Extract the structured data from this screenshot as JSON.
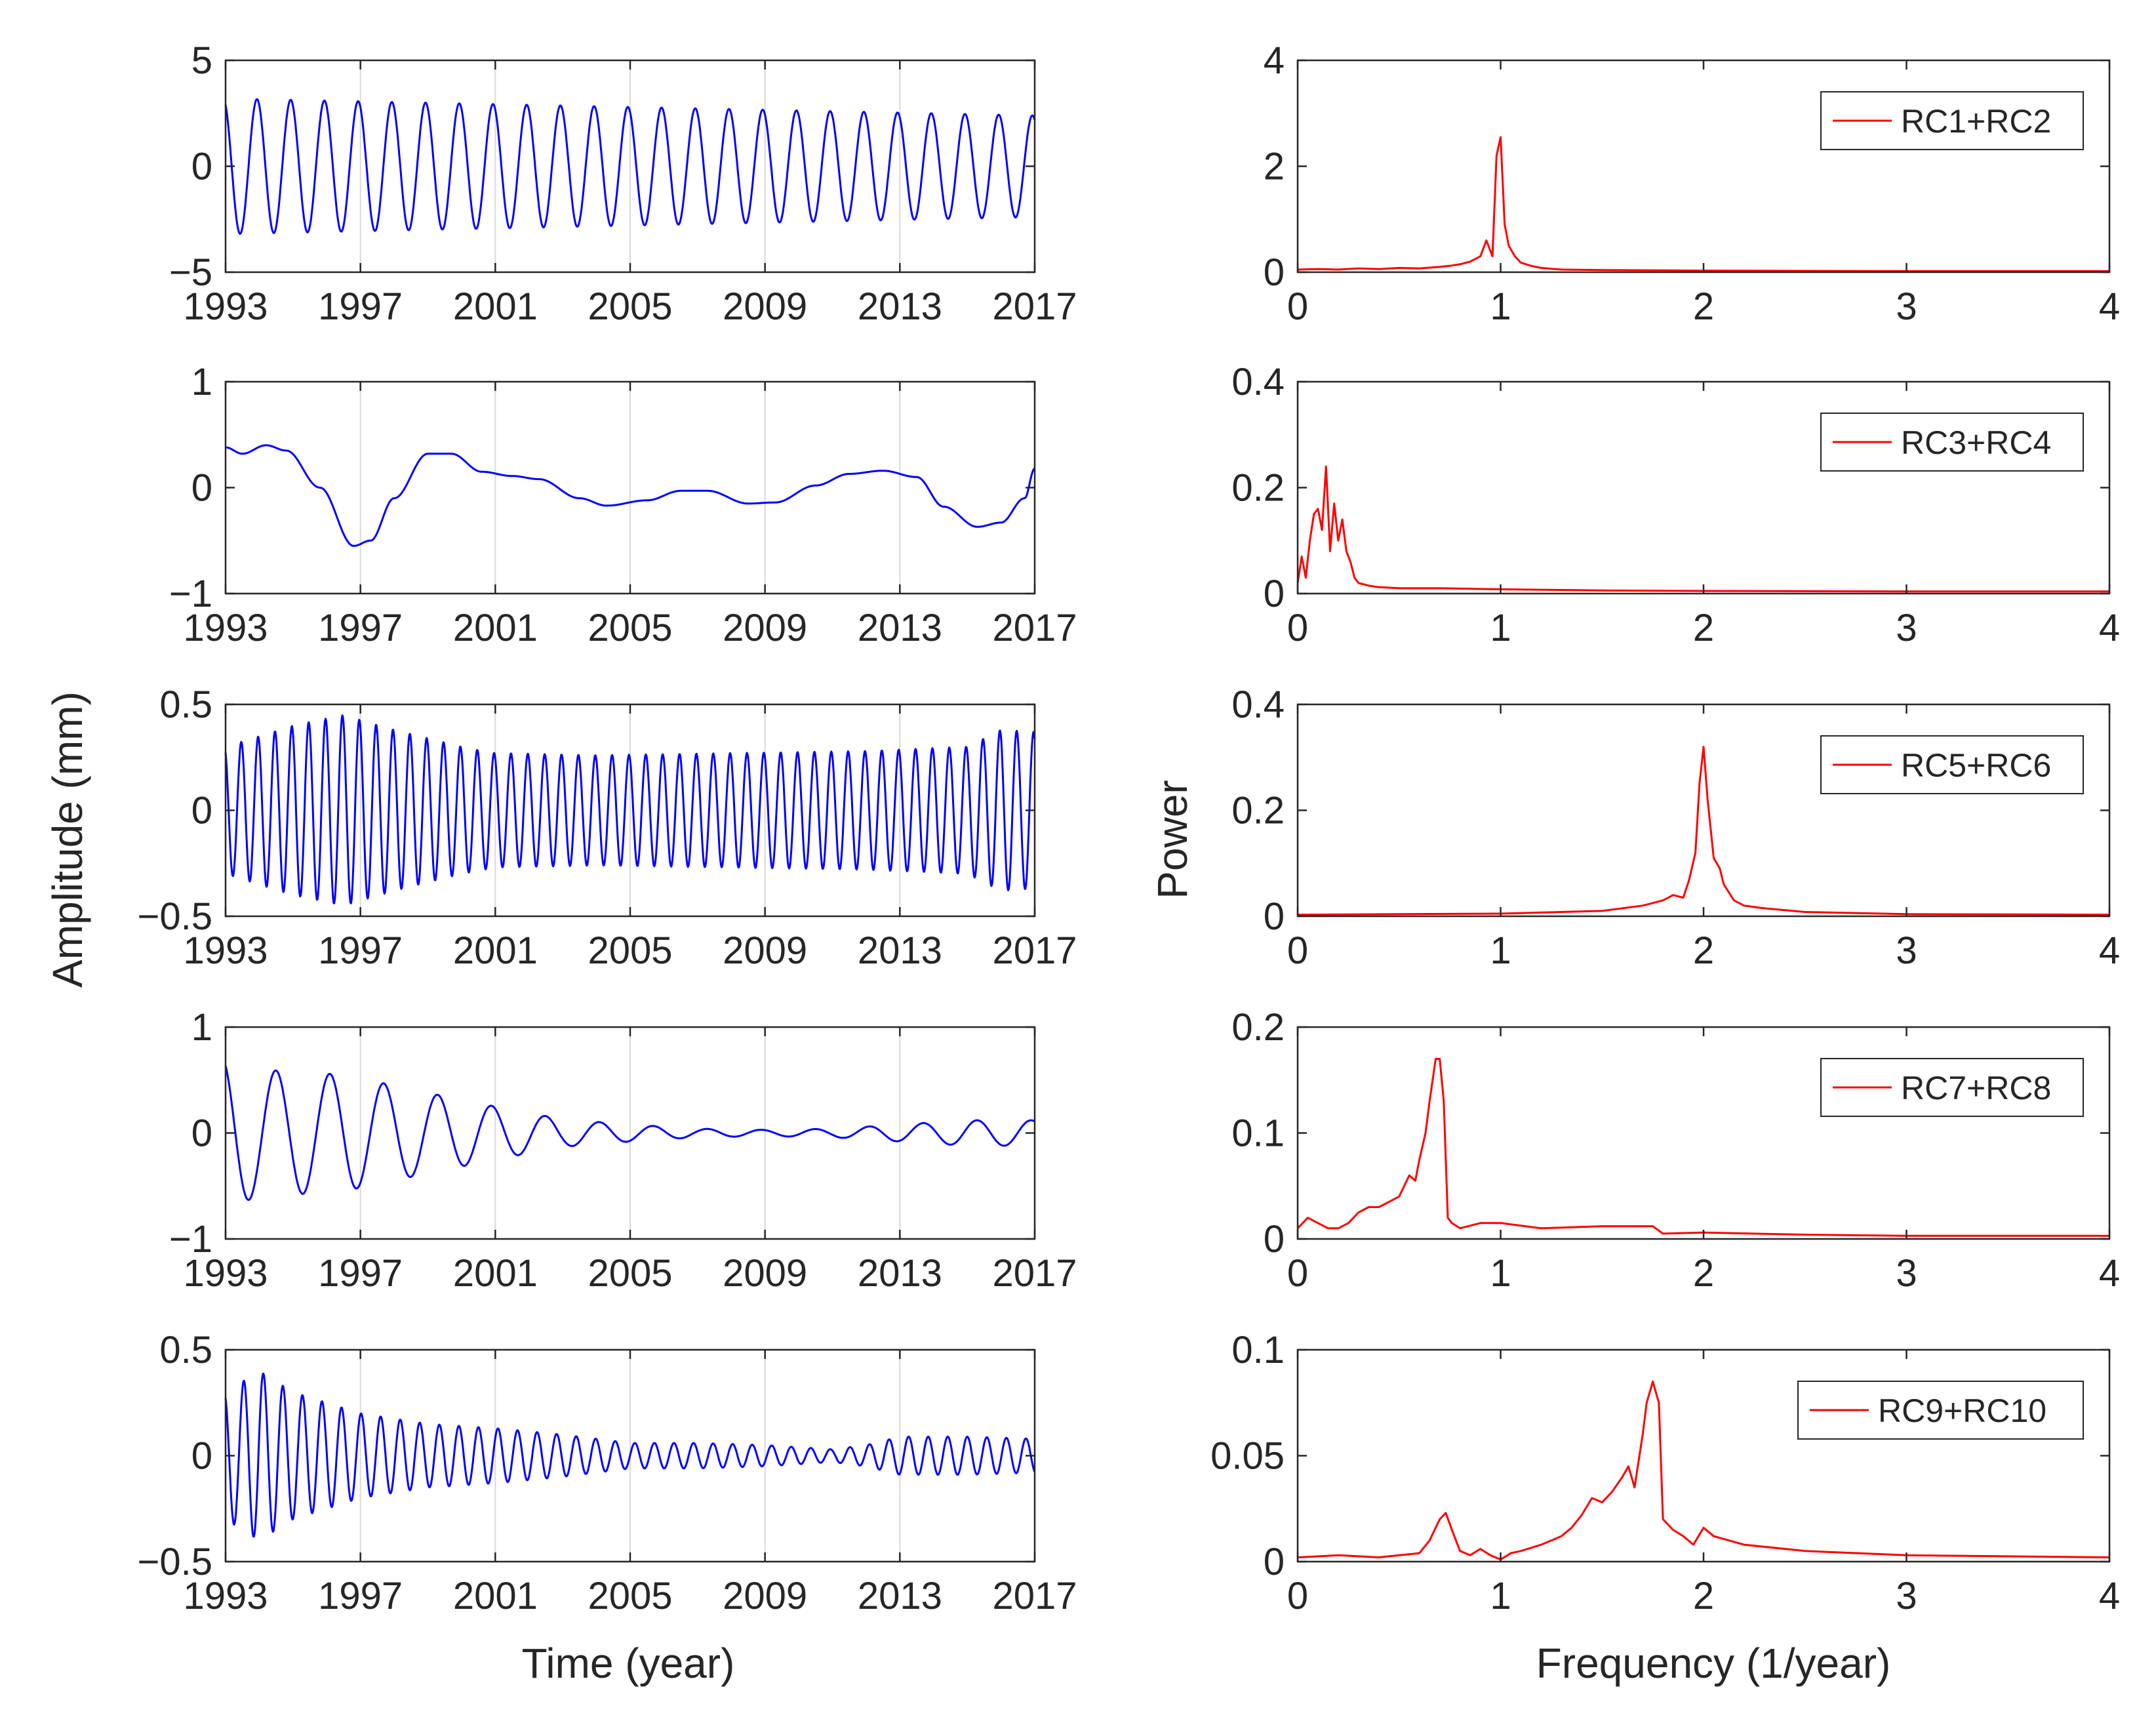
{
  "colors": {
    "time_series": "#0000ff",
    "spectrum": "#ff0000",
    "axes": "#262626",
    "grid": "#d9d9d9"
  },
  "labels": {
    "left_ylabel": "Amplitude (mm)",
    "left_xlabel": "Time (year)",
    "right_ylabel": "Power",
    "right_xlabel": "Frequency (1/year)"
  },
  "chart_data": [
    {
      "type": "line",
      "panel": "time",
      "row": 1,
      "x_ticks": [
        "1993",
        "1997",
        "2001",
        "2005",
        "2009",
        "2013",
        "2017"
      ],
      "y_ticks": [
        "5",
        "0",
        "−5"
      ],
      "xlim": [
        1993,
        2017
      ],
      "ylim": [
        -5,
        5
      ],
      "grid": "vertical",
      "signal": {
        "kind": "periodic",
        "period_years": 1.0,
        "amplitude_start": 3.2,
        "amplitude_end": 2.4
      }
    },
    {
      "type": "line",
      "panel": "time",
      "row": 2,
      "x_ticks": [
        "1993",
        "1997",
        "2001",
        "2005",
        "2009",
        "2013",
        "2017"
      ],
      "y_ticks": [
        "1",
        "0",
        "−1"
      ],
      "xlim": [
        1993,
        2017
      ],
      "ylim": [
        -1,
        1
      ],
      "grid": "vertical",
      "signal": {
        "kind": "smooth",
        "points": [
          [
            1993,
            0.38
          ],
          [
            1993.5,
            0.32
          ],
          [
            1994.2,
            0.4
          ],
          [
            1994.8,
            0.35
          ],
          [
            1995.8,
            0.0
          ],
          [
            1996.8,
            -0.55
          ],
          [
            1997.3,
            -0.5
          ],
          [
            1998,
            -0.1
          ],
          [
            1999,
            0.32
          ],
          [
            1999.7,
            0.32
          ],
          [
            2000.6,
            0.15
          ],
          [
            2001.5,
            0.11
          ],
          [
            2002.3,
            0.08
          ],
          [
            2003.5,
            -0.1
          ],
          [
            2004.3,
            -0.17
          ],
          [
            2005.5,
            -0.12
          ],
          [
            2006.5,
            -0.03
          ],
          [
            2007.3,
            -0.03
          ],
          [
            2008.5,
            -0.15
          ],
          [
            2009.3,
            -0.14
          ],
          [
            2010.5,
            0.02
          ],
          [
            2011.5,
            0.13
          ],
          [
            2012.5,
            0.16
          ],
          [
            2013.5,
            0.1
          ],
          [
            2014.3,
            -0.18
          ],
          [
            2015.3,
            -0.37
          ],
          [
            2016,
            -0.33
          ],
          [
            2016.7,
            -0.1
          ],
          [
            2017,
            0.18
          ]
        ]
      }
    },
    {
      "type": "line",
      "panel": "time",
      "row": 3,
      "x_ticks": [
        "1993",
        "1997",
        "2001",
        "2005",
        "2009",
        "2013",
        "2017"
      ],
      "y_ticks": [
        "0.5",
        "0",
        "−0.5"
      ],
      "xlim": [
        1993,
        2017
      ],
      "ylim": [
        -0.5,
        0.5
      ],
      "grid": "vertical",
      "signal": {
        "kind": "periodic",
        "period_years": 0.5,
        "amplitude_points": [
          [
            1993,
            0.3
          ],
          [
            1995,
            0.4
          ],
          [
            1996.5,
            0.45
          ],
          [
            1998,
            0.38
          ],
          [
            2000,
            0.3
          ],
          [
            2001,
            0.27
          ],
          [
            2004,
            0.26
          ],
          [
            2008,
            0.27
          ],
          [
            2012,
            0.28
          ],
          [
            2015,
            0.3
          ],
          [
            2016,
            0.38
          ],
          [
            2017,
            0.37
          ]
        ]
      }
    },
    {
      "type": "line",
      "panel": "time",
      "row": 4,
      "x_ticks": [
        "1993",
        "1997",
        "2001",
        "2005",
        "2009",
        "2013",
        "2017"
      ],
      "y_ticks": [
        "1",
        "0",
        "−1"
      ],
      "xlim": [
        1993,
        2017
      ],
      "ylim": [
        -1,
        1
      ],
      "grid": "vertical",
      "signal": {
        "kind": "periodic",
        "period_years": 1.6,
        "amplitude_points": [
          [
            1993,
            0.7
          ],
          [
            1994,
            0.6
          ],
          [
            1996.5,
            0.55
          ],
          [
            1999,
            0.38
          ],
          [
            2001,
            0.25
          ],
          [
            2003,
            0.13
          ],
          [
            2005,
            0.08
          ],
          [
            2007,
            0.04
          ],
          [
            2009,
            0.03
          ],
          [
            2011,
            0.04
          ],
          [
            2013,
            0.08
          ],
          [
            2015,
            0.12
          ],
          [
            2017,
            0.12
          ]
        ]
      }
    },
    {
      "type": "line",
      "panel": "time",
      "row": 5,
      "x_ticks": [
        "1993",
        "1997",
        "2001",
        "2005",
        "2009",
        "2013",
        "2017"
      ],
      "y_ticks": [
        "0.5",
        "0",
        "−0.5"
      ],
      "xlim": [
        1993,
        2017
      ],
      "ylim": [
        -0.5,
        0.5
      ],
      "grid": "vertical",
      "signal": {
        "kind": "periodic",
        "period_years": 0.58,
        "amplitude_points": [
          [
            1993,
            0.3
          ],
          [
            1994,
            0.4
          ],
          [
            1995,
            0.3
          ],
          [
            1997,
            0.2
          ],
          [
            1999,
            0.15
          ],
          [
            2001,
            0.13
          ],
          [
            2003,
            0.1
          ],
          [
            2005,
            0.06
          ],
          [
            2007,
            0.06
          ],
          [
            2009,
            0.05
          ],
          [
            2011,
            0.03
          ],
          [
            2012,
            0.05
          ],
          [
            2013,
            0.09
          ],
          [
            2015,
            0.09
          ],
          [
            2017,
            0.08
          ]
        ]
      }
    },
    {
      "type": "line",
      "panel": "spectrum",
      "row": 1,
      "x_ticks": [
        "0",
        "1",
        "2",
        "3",
        "4"
      ],
      "y_ticks": [
        "4",
        "2",
        "0"
      ],
      "xlim": [
        0,
        4
      ],
      "ylim": [
        0,
        4
      ],
      "grid": false,
      "legend": "RC1+RC2",
      "legend_position": "top-right",
      "x": [
        0,
        0.1,
        0.2,
        0.3,
        0.4,
        0.5,
        0.6,
        0.7,
        0.75,
        0.8,
        0.85,
        0.9,
        0.93,
        0.96,
        0.98,
        1.0,
        1.02,
        1.04,
        1.07,
        1.1,
        1.15,
        1.2,
        1.3,
        1.5,
        2.0,
        3.0,
        4.0
      ],
      "y": [
        0.05,
        0.06,
        0.05,
        0.07,
        0.06,
        0.08,
        0.07,
        0.1,
        0.12,
        0.15,
        0.2,
        0.3,
        0.6,
        0.3,
        2.2,
        2.55,
        0.9,
        0.5,
        0.3,
        0.18,
        0.12,
        0.08,
        0.05,
        0.04,
        0.03,
        0.02,
        0.02
      ]
    },
    {
      "type": "line",
      "panel": "spectrum",
      "row": 2,
      "x_ticks": [
        "0",
        "1",
        "2",
        "3",
        "4"
      ],
      "y_ticks": [
        "0.4",
        "0.2",
        "0"
      ],
      "xlim": [
        0,
        4
      ],
      "ylim": [
        0,
        0.4
      ],
      "grid": false,
      "legend": "RC3+RC4",
      "legend_position": "top-right",
      "x": [
        0,
        0.02,
        0.04,
        0.06,
        0.08,
        0.1,
        0.12,
        0.14,
        0.16,
        0.18,
        0.2,
        0.22,
        0.24,
        0.26,
        0.28,
        0.3,
        0.35,
        0.4,
        0.5,
        0.7,
        1.0,
        1.5,
        2.0,
        3.0,
        4.0
      ],
      "y": [
        0.02,
        0.07,
        0.03,
        0.1,
        0.15,
        0.16,
        0.12,
        0.24,
        0.08,
        0.17,
        0.1,
        0.14,
        0.08,
        0.06,
        0.03,
        0.02,
        0.015,
        0.012,
        0.01,
        0.01,
        0.008,
        0.006,
        0.005,
        0.004,
        0.004
      ]
    },
    {
      "type": "line",
      "panel": "spectrum",
      "row": 3,
      "x_ticks": [
        "0",
        "1",
        "2",
        "3",
        "4"
      ],
      "y_ticks": [
        "0.4",
        "0.2",
        "0"
      ],
      "xlim": [
        0,
        4
      ],
      "ylim": [
        0,
        0.4
      ],
      "grid": false,
      "legend": "RC5+RC6",
      "legend_position": "top-right",
      "x": [
        0,
        0.5,
        1.0,
        1.3,
        1.5,
        1.7,
        1.8,
        1.85,
        1.9,
        1.93,
        1.96,
        1.98,
        2.0,
        2.02,
        2.05,
        2.08,
        2.1,
        2.15,
        2.2,
        2.3,
        2.5,
        3.0,
        4.0
      ],
      "y": [
        0.003,
        0.004,
        0.005,
        0.008,
        0.01,
        0.02,
        0.03,
        0.04,
        0.035,
        0.07,
        0.12,
        0.25,
        0.32,
        0.22,
        0.11,
        0.09,
        0.06,
        0.03,
        0.02,
        0.015,
        0.008,
        0.004,
        0.003
      ]
    },
    {
      "type": "line",
      "panel": "spectrum",
      "row": 4,
      "x_ticks": [
        "0",
        "1",
        "2",
        "3",
        "4"
      ],
      "y_ticks": [
        "0.2",
        "0.1",
        "0"
      ],
      "xlim": [
        0,
        4
      ],
      "ylim": [
        0,
        0.2
      ],
      "grid": false,
      "legend": "RC7+RC8",
      "legend_position": "top-right",
      "x": [
        0,
        0.05,
        0.1,
        0.15,
        0.2,
        0.25,
        0.3,
        0.35,
        0.4,
        0.45,
        0.5,
        0.55,
        0.58,
        0.6,
        0.63,
        0.65,
        0.68,
        0.7,
        0.72,
        0.74,
        0.76,
        0.8,
        0.9,
        1.0,
        1.2,
        1.5,
        1.7,
        1.75,
        1.8,
        2.0,
        2.5,
        3.0,
        4.0
      ],
      "y": [
        0.01,
        0.02,
        0.015,
        0.01,
        0.01,
        0.015,
        0.025,
        0.03,
        0.03,
        0.035,
        0.04,
        0.06,
        0.055,
        0.075,
        0.1,
        0.13,
        0.17,
        0.17,
        0.13,
        0.02,
        0.015,
        0.01,
        0.015,
        0.015,
        0.01,
        0.012,
        0.012,
        0.012,
        0.005,
        0.006,
        0.004,
        0.003,
        0.003
      ]
    },
    {
      "type": "line",
      "panel": "spectrum",
      "row": 5,
      "x_ticks": [
        "0",
        "1",
        "2",
        "3",
        "4"
      ],
      "y_ticks": [
        "0.1",
        "0.05",
        "0"
      ],
      "xlim": [
        0,
        4
      ],
      "ylim": [
        0,
        0.1
      ],
      "grid": false,
      "legend": "RC9+RC10",
      "legend_position": "top-right",
      "x": [
        0,
        0.2,
        0.4,
        0.5,
        0.6,
        0.65,
        0.7,
        0.73,
        0.76,
        0.8,
        0.85,
        0.9,
        0.95,
        1.0,
        1.05,
        1.1,
        1.2,
        1.3,
        1.35,
        1.4,
        1.45,
        1.5,
        1.55,
        1.6,
        1.63,
        1.66,
        1.7,
        1.72,
        1.75,
        1.78,
        1.8,
        1.85,
        1.9,
        1.95,
        2.0,
        2.05,
        2.2,
        2.5,
        3.0,
        4.0
      ],
      "y": [
        0.002,
        0.003,
        0.002,
        0.003,
        0.004,
        0.01,
        0.02,
        0.023,
        0.015,
        0.005,
        0.003,
        0.006,
        0.003,
        0.001,
        0.004,
        0.005,
        0.008,
        0.012,
        0.016,
        0.022,
        0.03,
        0.028,
        0.033,
        0.04,
        0.045,
        0.035,
        0.06,
        0.075,
        0.085,
        0.075,
        0.02,
        0.015,
        0.012,
        0.008,
        0.016,
        0.012,
        0.008,
        0.005,
        0.003,
        0.002
      ]
    }
  ]
}
